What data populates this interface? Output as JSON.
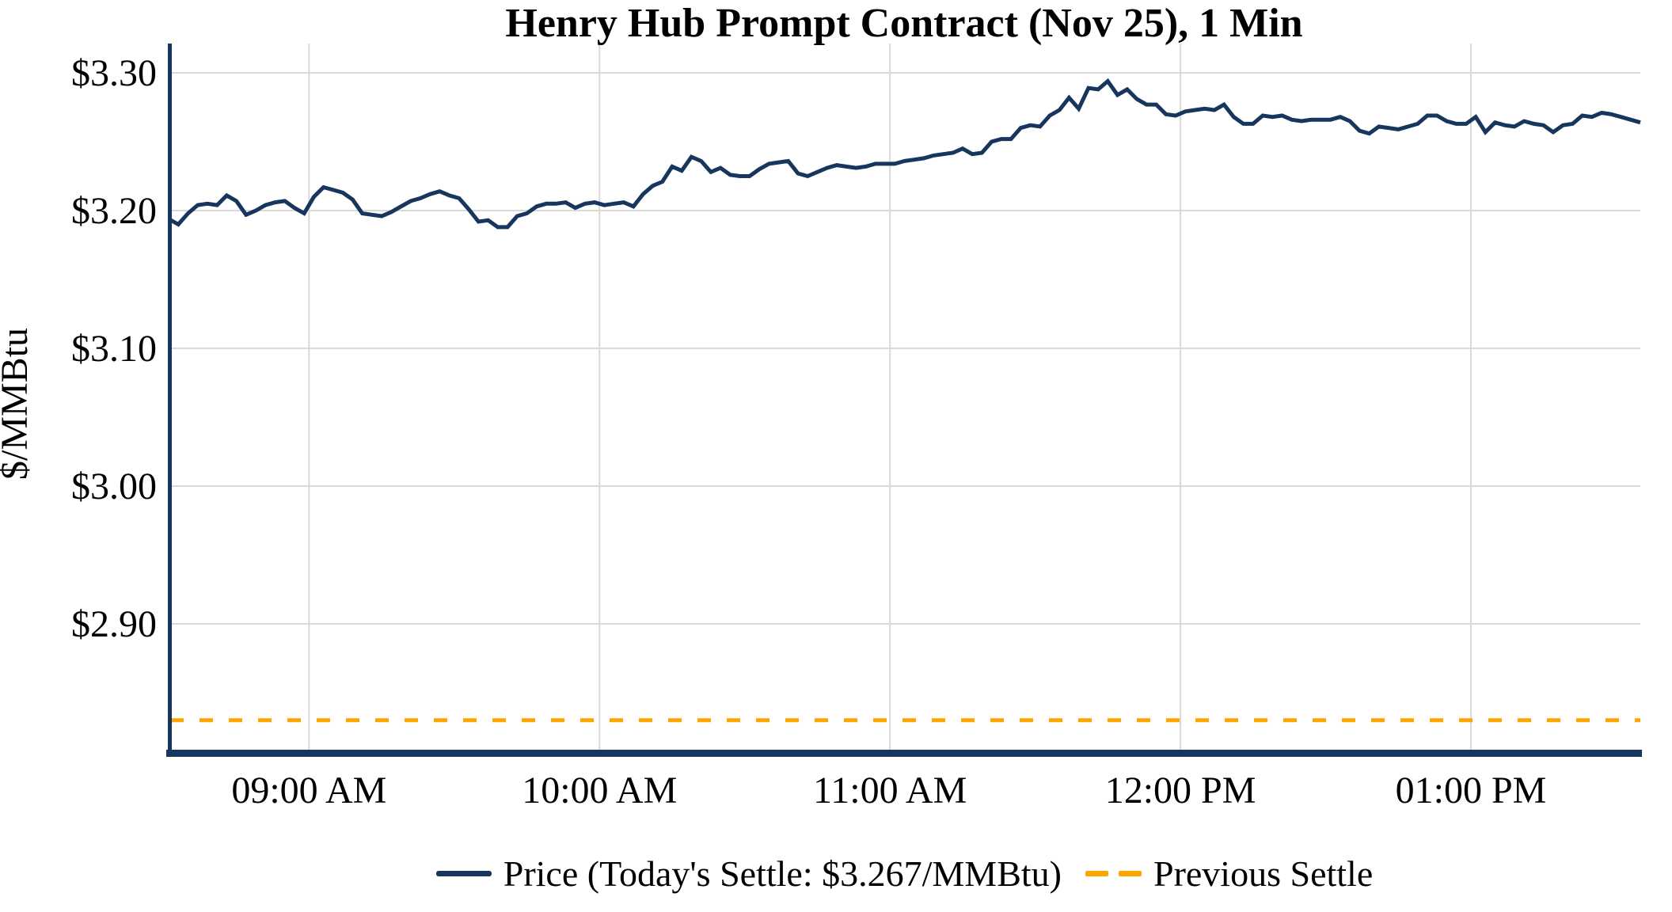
{
  "colors": {
    "price_line": "#17365d",
    "axis": "#17365d",
    "prev_settle": "#ffa500",
    "gridline": "#d9d9d9",
    "background": "#ffffff",
    "text": "#000000"
  },
  "chart_data": {
    "type": "line",
    "title": "Henry Hub Prompt Contract (Nov 25), 1 Min",
    "ylabel": "$/MMBtu",
    "xlabel": "",
    "grid": true,
    "legend_position": "bottom-center",
    "x_axis": {
      "range_minutes": [
        511,
        815
      ],
      "ticks": [
        {
          "label": "09:00 AM",
          "minutes": 540
        },
        {
          "label": "10:00 AM",
          "minutes": 600
        },
        {
          "label": "11:00 AM",
          "minutes": 660
        },
        {
          "label": "12:00 PM",
          "minutes": 720
        },
        {
          "label": "01:00 PM",
          "minutes": 780
        }
      ]
    },
    "y_axis": {
      "range": [
        2.804,
        3.3213
      ],
      "ticks": [
        {
          "label": "$3.30",
          "value": 3.3
        },
        {
          "label": "$3.20",
          "value": 3.2
        },
        {
          "label": "$3.10",
          "value": 3.1
        },
        {
          "label": "$3.00",
          "value": 3.0
        },
        {
          "label": "$2.90",
          "value": 2.9
        }
      ]
    },
    "series": [
      {
        "name": "Price",
        "legend_label": "Price (Today's Settle: $3.267/MMBtu)",
        "type": "line",
        "style": "solid",
        "color": "#17365d",
        "todays_settle_value": 3.267,
        "sample_start_time": "08:31",
        "sample_interval_minutes": 2,
        "values": [
          3.194,
          3.19,
          3.198,
          3.204,
          3.205,
          3.204,
          3.211,
          3.207,
          3.197,
          3.2,
          3.204,
          3.206,
          3.207,
          3.202,
          3.198,
          3.21,
          3.217,
          3.215,
          3.213,
          3.208,
          3.198,
          3.197,
          3.196,
          3.199,
          3.203,
          3.207,
          3.209,
          3.212,
          3.214,
          3.211,
          3.209,
          3.201,
          3.192,
          3.193,
          3.188,
          3.188,
          3.196,
          3.198,
          3.203,
          3.205,
          3.205,
          3.206,
          3.202,
          3.205,
          3.206,
          3.204,
          3.205,
          3.206,
          3.203,
          3.212,
          3.218,
          3.221,
          3.232,
          3.229,
          3.239,
          3.236,
          3.228,
          3.231,
          3.226,
          3.225,
          3.225,
          3.23,
          3.234,
          3.235,
          3.236,
          3.227,
          3.225,
          3.228,
          3.231,
          3.233,
          3.232,
          3.231,
          3.232,
          3.234,
          3.234,
          3.234,
          3.236,
          3.237,
          3.238,
          3.24,
          3.241,
          3.242,
          3.245,
          3.241,
          3.242,
          3.25,
          3.252,
          3.252,
          3.26,
          3.262,
          3.261,
          3.269,
          3.273,
          3.282,
          3.274,
          3.289,
          3.288,
          3.294,
          3.284,
          3.288,
          3.281,
          3.277,
          3.277,
          3.27,
          3.269,
          3.272,
          3.273,
          3.274,
          3.273,
          3.277,
          3.268,
          3.263,
          3.263,
          3.269,
          3.268,
          3.269,
          3.266,
          3.265,
          3.266,
          3.266,
          3.266,
          3.268,
          3.265,
          3.258,
          3.256,
          3.261,
          3.26,
          3.259,
          3.261,
          3.263,
          3.269,
          3.269,
          3.265,
          3.263,
          3.263,
          3.268,
          3.257,
          3.264,
          3.262,
          3.261,
          3.265,
          3.263,
          3.262,
          3.257,
          3.262,
          3.263,
          3.269,
          3.268,
          3.271,
          3.27,
          3.268,
          3.266,
          3.264
        ]
      },
      {
        "name": "Previous Settle",
        "legend_label": "Previous Settle",
        "type": "horizontal-line",
        "style": "dashed",
        "color": "#ffa500",
        "value": 2.83
      }
    ]
  }
}
